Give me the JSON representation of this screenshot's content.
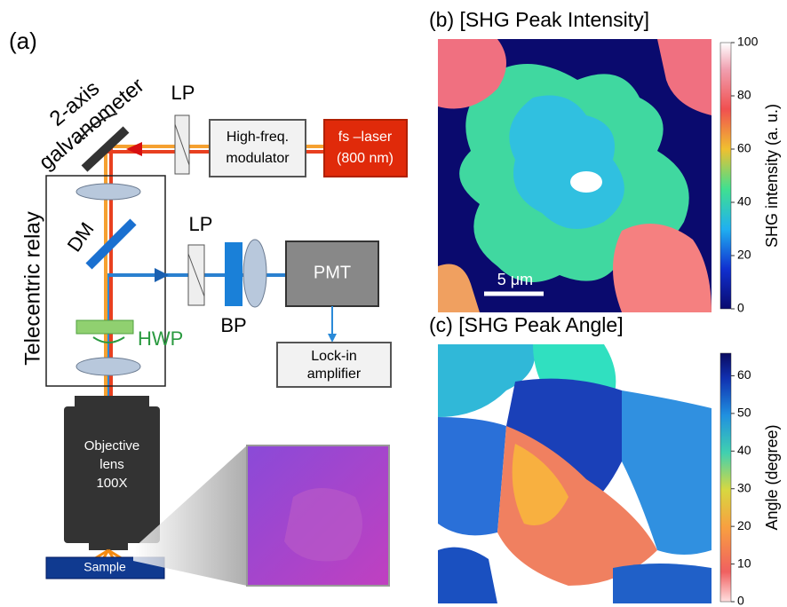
{
  "panel_a": {
    "label": "(a)",
    "galvanometer": [
      "2-axis",
      "galvanometer"
    ],
    "lp_1": "LP",
    "modulator": [
      "High-freq.",
      "modulator"
    ],
    "laser": [
      "fs –laser",
      "(800 nm)"
    ],
    "relay": "Telecentric relay",
    "dm": "DM",
    "lp_2": "LP",
    "bp": "BP",
    "pmt": "PMT",
    "hwp": "HWP",
    "lockin": [
      "Lock-in",
      "amplifier"
    ],
    "objective": [
      "Objective",
      "lens",
      "100X"
    ],
    "sample": "Sample"
  },
  "panel_b": {
    "title": "(b) [SHG Peak Intensity]",
    "scale_bar": "5 μm",
    "colorbar": {
      "label": "SHG intensity (a. u.)",
      "lim": [
        0,
        100
      ],
      "ticks": [
        0,
        20,
        40,
        60,
        80,
        100
      ]
    }
  },
  "panel_c": {
    "title": "(c) [SHG Peak Angle]",
    "colorbar": {
      "label": "Angle (degree)",
      "lim": [
        0,
        66
      ],
      "ticks": [
        0,
        10,
        20,
        30,
        40,
        50,
        60
      ]
    }
  }
}
